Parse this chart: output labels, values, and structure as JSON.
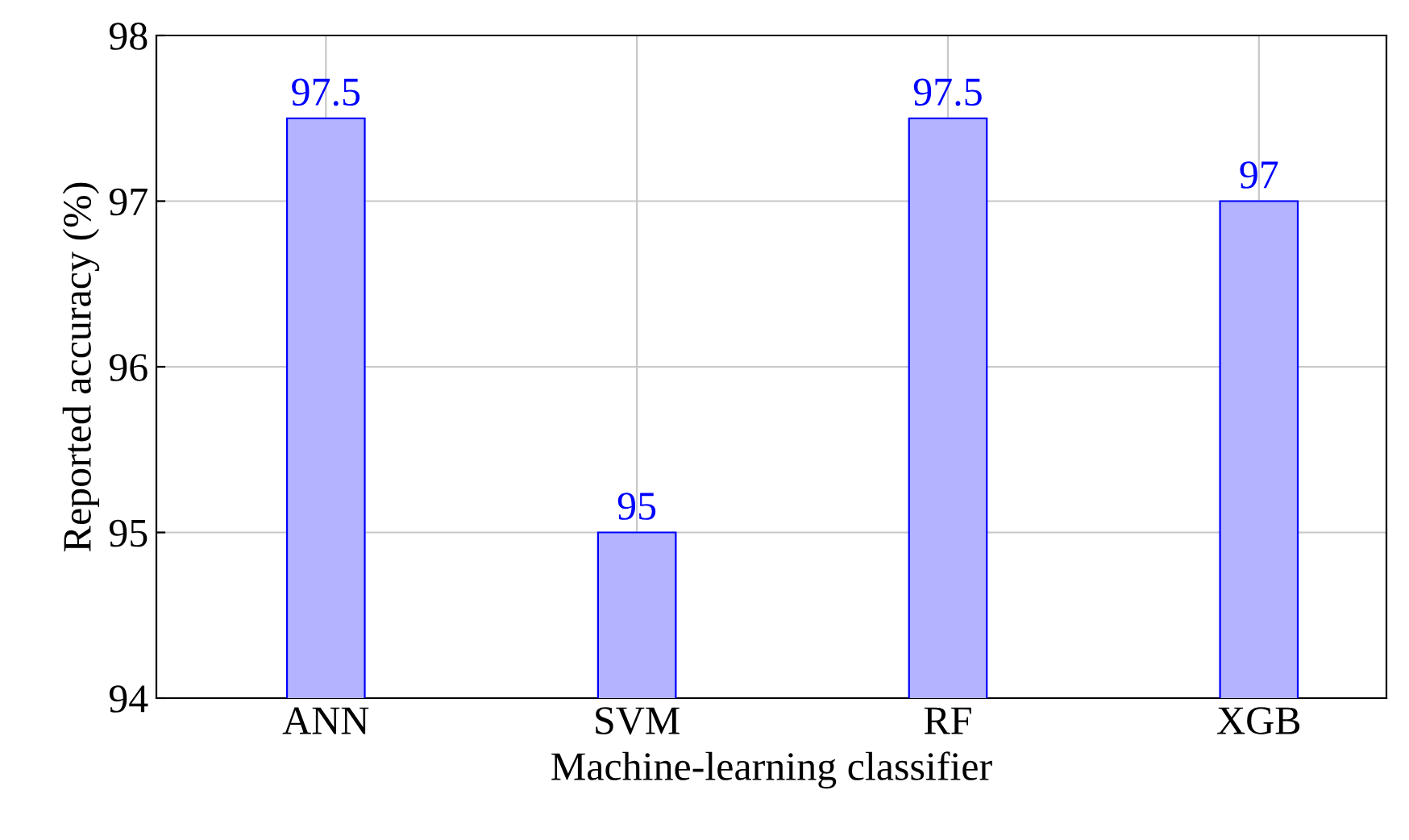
{
  "chart_data": {
    "type": "bar",
    "xlabel": "Machine-learning classifier",
    "ylabel": "Reported accuracy (%)",
    "categories": [
      "ANN",
      "SVM",
      "RF",
      "XGB"
    ],
    "values": [
      97.5,
      95,
      97.5,
      97
    ],
    "color": "#b3b3ff",
    "ylim": [
      94,
      98
    ],
    "yticks": [
      94,
      95,
      96,
      97,
      98
    ],
    "grid": true,
    "data_labels": true
  }
}
